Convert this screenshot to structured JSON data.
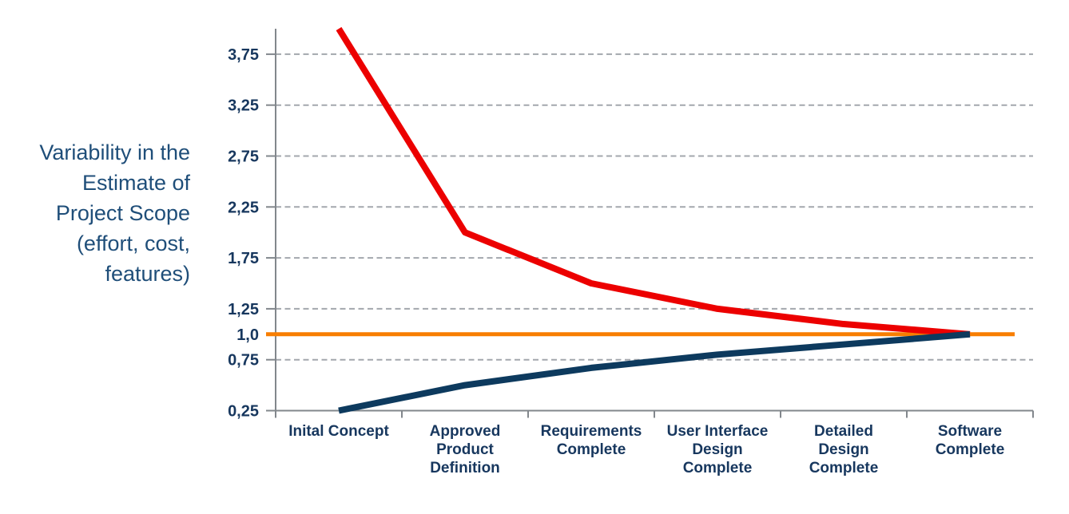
{
  "y_axis_title": "Variability in the\nEstimate of\nProject Scope\n(effort, cost,\nfeatures)",
  "chart_data": {
    "type": "line",
    "title": "",
    "xlabel": "",
    "ylabel": "Variability in the Estimate of Project Scope (effort, cost, features)",
    "categories": [
      [
        "Inital Concept"
      ],
      [
        "Approved",
        "Product",
        "Definition"
      ],
      [
        "Requirements",
        "Complete"
      ],
      [
        "User Interface",
        "Design",
        "Complete"
      ],
      [
        "Detailed",
        "Design",
        "Complete"
      ],
      [
        "Software",
        "Complete"
      ]
    ],
    "series": [
      {
        "id": "upper-estimate-line",
        "color": "#EC0000",
        "width": 8,
        "values": [
          4.0,
          2.0,
          1.5,
          1.25,
          1.1,
          1.0
        ]
      },
      {
        "id": "lower-estimate-line",
        "color": "#0D3A5E",
        "width": 8,
        "values": [
          0.25,
          0.5,
          0.67,
          0.8,
          0.9,
          1.0
        ]
      }
    ],
    "reference_line": {
      "id": "baseline-reference-line",
      "value": 1.0,
      "color": "#F87E00",
      "width": 5
    },
    "y_ticks": [
      {
        "label": "0,25",
        "value": 0.25
      },
      {
        "label": "0,75",
        "value": 0.75
      },
      {
        "label": "1,0",
        "value": 1.0
      },
      {
        "label": "1,25",
        "value": 1.25
      },
      {
        "label": "1,75",
        "value": 1.75
      },
      {
        "label": "2,25",
        "value": 2.25
      },
      {
        "label": "2,75",
        "value": 2.75
      },
      {
        "label": "3,25",
        "value": 3.25
      },
      {
        "label": "3,75",
        "value": 3.75
      }
    ],
    "gridline_values": [
      0.75,
      1.25,
      1.75,
      2.25,
      2.75,
      3.25,
      3.75
    ],
    "ylim": [
      0.25,
      4.0
    ],
    "grid": "horizontal dashed",
    "legend": "none",
    "colors": {
      "axis": "#82878C",
      "gridline": "#A3A7AD",
      "tick_label": "#17375E",
      "category_label": "#17375E",
      "title_text": "#1F4E79",
      "background": "#FFFFFF"
    }
  }
}
